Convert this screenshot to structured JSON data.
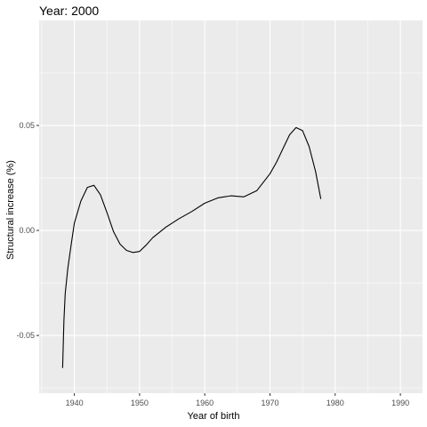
{
  "chart_data": {
    "type": "line",
    "title": "Year: 2000",
    "xlabel": "Year of birth",
    "ylabel": "Structural increase (%)",
    "xlim": [
      1934.6,
      1993.4
    ],
    "ylim": [
      -0.0775,
      0.1
    ],
    "x_ticks": [
      1940,
      1950,
      1960,
      1970,
      1980,
      1990
    ],
    "y_ticks": [
      -0.05,
      0.0,
      0.05
    ],
    "y_tick_labels": [
      "-0.05",
      "0.00",
      "0.05"
    ],
    "grid": true,
    "background": "#EBEBEB",
    "grid_color": "#FFFFFF",
    "line_color": "#000000",
    "series": [
      {
        "x": [
          1938.2,
          1938.4,
          1938.6,
          1939,
          1939.5,
          1940,
          1941,
          1942,
          1943,
          1944,
          1945,
          1946,
          1947,
          1948,
          1949,
          1950,
          1951,
          1952,
          1954,
          1956,
          1958,
          1960,
          1962,
          1964,
          1966,
          1968,
          1970,
          1971,
          1972,
          1973,
          1974,
          1975,
          1976,
          1977,
          1977.8
        ],
        "y": [
          -0.0655,
          -0.043,
          -0.03,
          -0.018,
          -0.007,
          0.0035,
          0.014,
          0.0205,
          0.0215,
          0.017,
          0.0085,
          -0.0005,
          -0.0065,
          -0.0095,
          -0.0105,
          -0.01,
          -0.007,
          -0.0035,
          0.0015,
          0.0055,
          0.009,
          0.013,
          0.0155,
          0.0165,
          0.016,
          0.019,
          0.027,
          0.0325,
          0.039,
          0.0455,
          0.049,
          0.0475,
          0.04,
          0.028,
          0.015
        ]
      }
    ]
  }
}
